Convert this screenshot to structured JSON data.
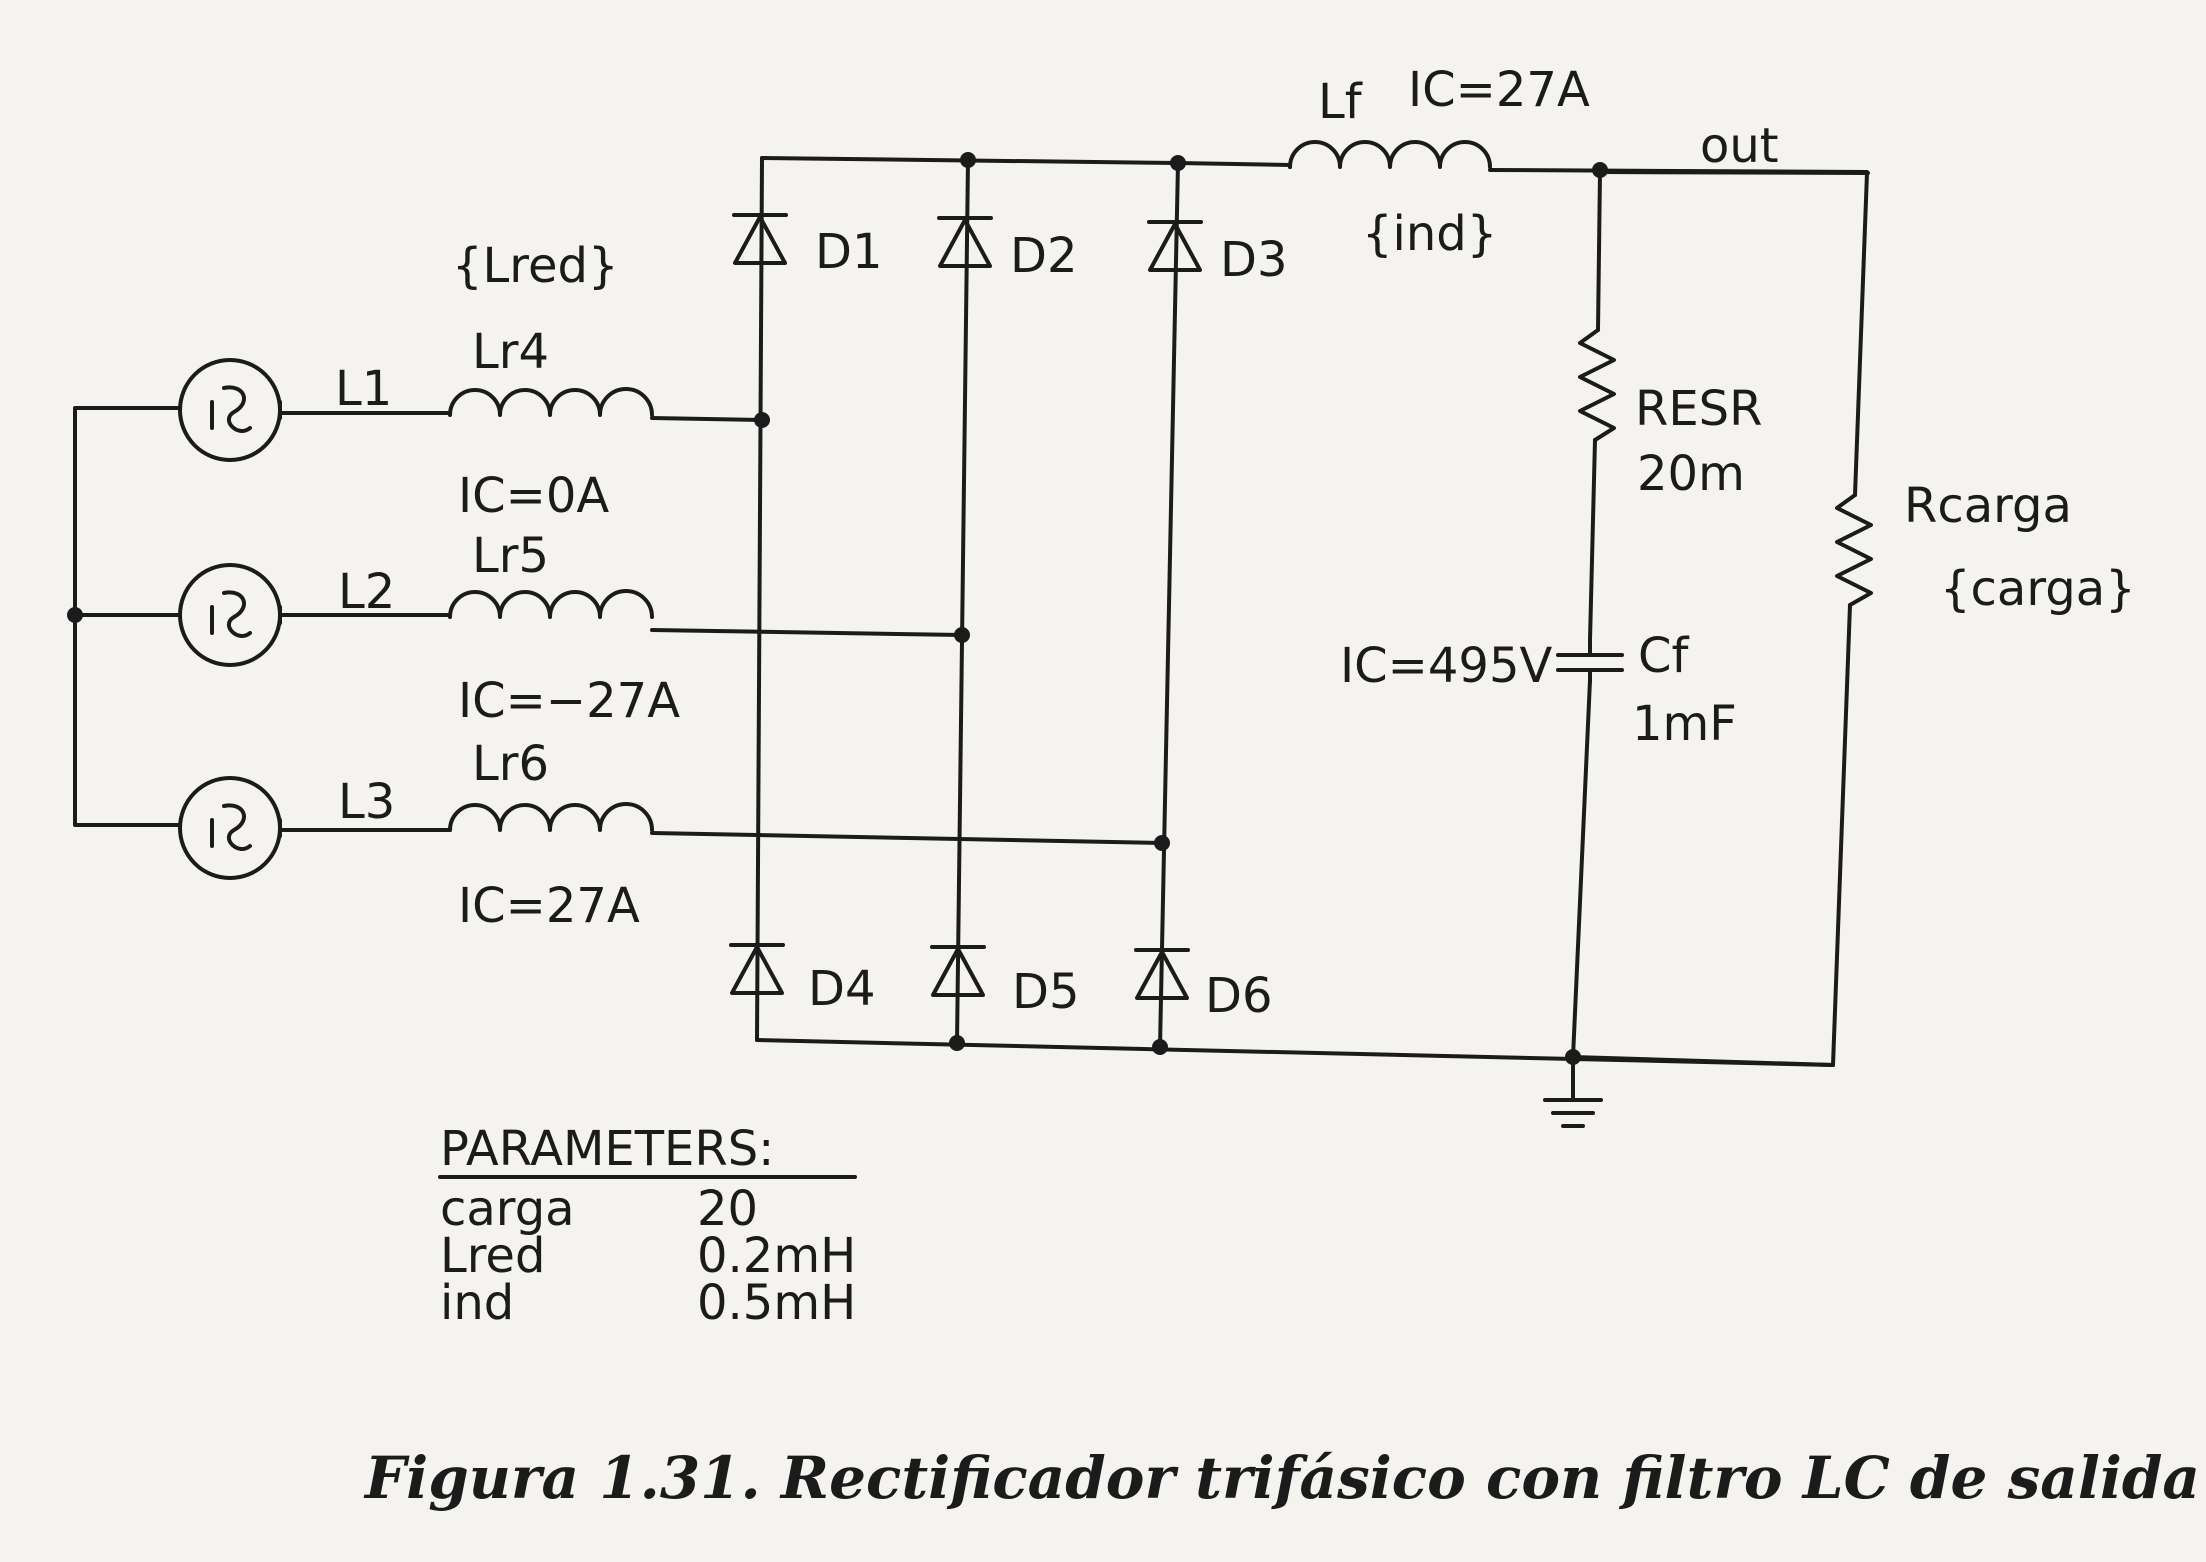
{
  "components": {
    "sources": [
      {
        "net": "L1"
      },
      {
        "net": "L2"
      },
      {
        "net": "L3"
      }
    ],
    "line_inductor_param": "{Lred}",
    "line_inductors": [
      {
        "name": "Lr4",
        "ic": "IC=0A"
      },
      {
        "name": "Lr5",
        "ic": "IC=−27A"
      },
      {
        "name": "Lr6",
        "ic": "IC=27A"
      }
    ],
    "diodes": [
      "D1",
      "D2",
      "D3",
      "D4",
      "D5",
      "D6"
    ],
    "filter_inductor": {
      "name": "Lf",
      "ic": "IC=27A",
      "value": "{ind}"
    },
    "out_label": "out",
    "esr": {
      "name": "RESR",
      "value": "20m"
    },
    "capacitor": {
      "name": "Cf",
      "value": "1mF",
      "ic": "IC=495V"
    },
    "load": {
      "name": "Rcarga",
      "value": "{carga}"
    }
  },
  "parameters": {
    "title": "PARAMETERS:",
    "rows": [
      {
        "name": "carga",
        "value": "20"
      },
      {
        "name": "Lred",
        "value": "0.2mH"
      },
      {
        "name": "ind",
        "value": "0.5mH"
      }
    ]
  },
  "caption": "Figura 1.31. Rectificador trifásico con filtro LC de salida",
  "colors": {
    "ink": "#1b1b1b",
    "paper": "#f4f3ef"
  },
  "icons": {
    "source": "ac-source-icon",
    "diode": "diode-icon",
    "inductor": "inductor-icon",
    "resistor": "resistor-icon",
    "capacitor": "capacitor-icon",
    "ground": "ground-icon"
  }
}
